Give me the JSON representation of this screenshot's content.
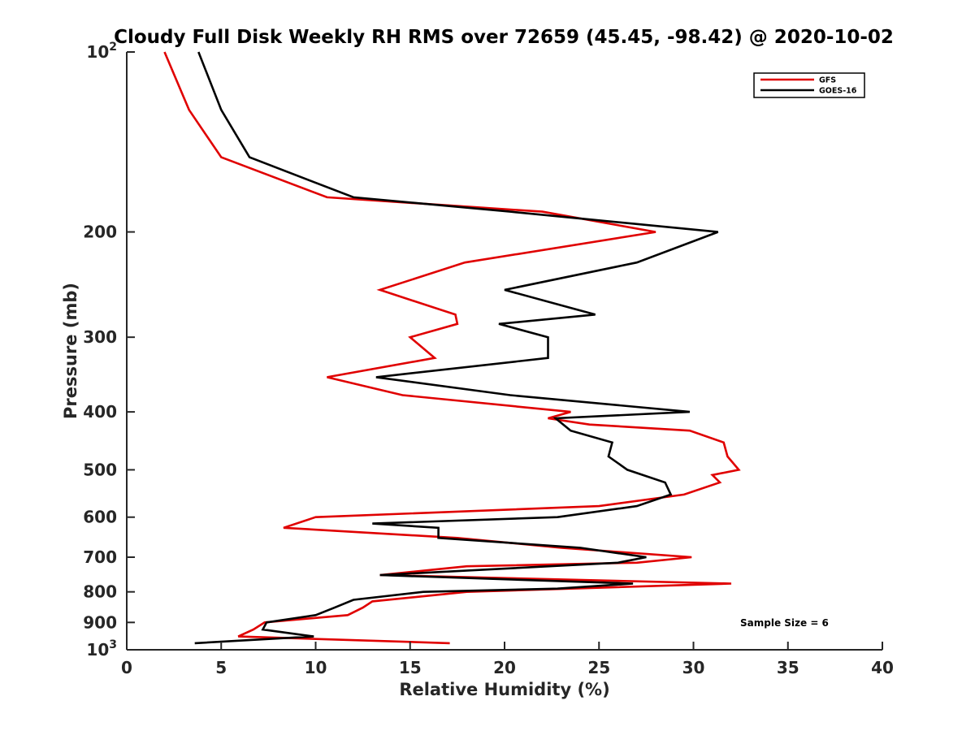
{
  "chart_data": {
    "type": "line",
    "title": "Cloudy Full Disk Weekly RH RMS over 72659 (45.45, -98.42) @ 2020-10-02",
    "xlabel": "Relative Humidity (%)",
    "ylabel": "Pressure (mb)",
    "xlim": [
      0,
      40
    ],
    "ylim": [
      100,
      1000
    ],
    "y_scale": "log",
    "y_direction": "reversed",
    "x_ticks": [
      "0",
      "5",
      "10",
      "15",
      "20",
      "25",
      "30",
      "35",
      "40"
    ],
    "y_ticks": [
      {
        "value": 100,
        "base": "10",
        "exp": "2"
      },
      {
        "value": 200,
        "label": "200"
      },
      {
        "value": 300,
        "label": "300"
      },
      {
        "value": 400,
        "label": "400"
      },
      {
        "value": 500,
        "label": "500"
      },
      {
        "value": 600,
        "label": "600"
      },
      {
        "value": 700,
        "label": "700"
      },
      {
        "value": 800,
        "label": "800"
      },
      {
        "value": 900,
        "label": "900"
      },
      {
        "value": 1000,
        "base": "10",
        "exp": "3"
      }
    ],
    "grid": false,
    "legend_position": "top-right",
    "annotation": "Sample Size = 6",
    "series": [
      {
        "name": "GFS",
        "color": "#e00000",
        "points": [
          [
            2.0,
            100
          ],
          [
            3.3,
            125
          ],
          [
            5.0,
            150
          ],
          [
            10.6,
            175
          ],
          [
            22.0,
            185
          ],
          [
            28.0,
            200
          ],
          [
            17.9,
            225
          ],
          [
            13.4,
            250
          ],
          [
            17.4,
            275
          ],
          [
            17.5,
            285
          ],
          [
            15.0,
            300
          ],
          [
            16.3,
            325
          ],
          [
            10.6,
            350
          ],
          [
            14.6,
            375
          ],
          [
            23.5,
            400
          ],
          [
            22.3,
            410
          ],
          [
            24.5,
            420
          ],
          [
            29.8,
            430
          ],
          [
            31.6,
            450
          ],
          [
            31.8,
            475
          ],
          [
            32.4,
            500
          ],
          [
            31.0,
            510
          ],
          [
            31.4,
            525
          ],
          [
            29.5,
            550
          ],
          [
            25.0,
            575
          ],
          [
            10.0,
            600
          ],
          [
            8.3,
            625
          ],
          [
            17.5,
            650
          ],
          [
            23.0,
            675
          ],
          [
            29.9,
            700
          ],
          [
            27.0,
            715
          ],
          [
            18.0,
            725
          ],
          [
            13.4,
            750
          ],
          [
            32.0,
            775
          ],
          [
            18.0,
            800
          ],
          [
            13.0,
            830
          ],
          [
            12.5,
            850
          ],
          [
            11.7,
            875
          ],
          [
            7.3,
            900
          ],
          [
            6.7,
            925
          ],
          [
            5.9,
            950
          ],
          [
            17.1,
            975
          ]
        ]
      },
      {
        "name": "GOES-16",
        "color": "#000000",
        "points": [
          [
            3.8,
            100
          ],
          [
            5.0,
            125
          ],
          [
            6.5,
            150
          ],
          [
            12.0,
            175
          ],
          [
            20.3,
            185
          ],
          [
            31.3,
            200
          ],
          [
            27.0,
            225
          ],
          [
            20.0,
            250
          ],
          [
            24.8,
            275
          ],
          [
            19.7,
            285
          ],
          [
            22.3,
            300
          ],
          [
            22.3,
            325
          ],
          [
            13.2,
            350
          ],
          [
            20.3,
            375
          ],
          [
            29.8,
            400
          ],
          [
            22.7,
            410
          ],
          [
            23.5,
            430
          ],
          [
            25.7,
            450
          ],
          [
            25.5,
            475
          ],
          [
            26.5,
            500
          ],
          [
            28.5,
            525
          ],
          [
            28.8,
            550
          ],
          [
            27.0,
            575
          ],
          [
            22.8,
            600
          ],
          [
            13.0,
            615
          ],
          [
            16.5,
            625
          ],
          [
            16.5,
            650
          ],
          [
            24.0,
            675
          ],
          [
            27.5,
            700
          ],
          [
            26.0,
            715
          ],
          [
            13.4,
            750
          ],
          [
            26.8,
            775
          ],
          [
            22.8,
            790
          ],
          [
            15.7,
            800
          ],
          [
            12.0,
            825
          ],
          [
            11.0,
            850
          ],
          [
            10.0,
            875
          ],
          [
            7.4,
            900
          ],
          [
            7.2,
            925
          ],
          [
            9.9,
            950
          ],
          [
            3.6,
            975
          ]
        ]
      }
    ]
  }
}
